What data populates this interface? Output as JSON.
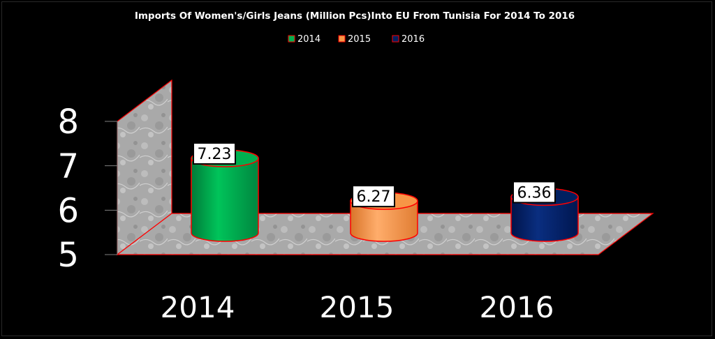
{
  "chart_data": {
    "type": "bar",
    "title": "Imports Of Women's/Girls Jeans (Million Pcs)Into EU From Tunisia For 2014 To 2016",
    "categories": [
      "2014",
      "2015",
      "2016"
    ],
    "values": [
      7.23,
      6.27,
      6.36
    ],
    "data_labels": [
      "7.23",
      "6.27",
      "6.36"
    ],
    "legend": [
      {
        "label": "2014",
        "color": "#00B050"
      },
      {
        "label": "2015",
        "color": "#F79646"
      },
      {
        "label": "2016",
        "color": "#002060"
      }
    ],
    "legend_position": "top",
    "yticks": [
      "5",
      "6",
      "7",
      "8"
    ],
    "ylim": [
      5,
      8
    ],
    "grid": false,
    "shape": "3d-cylinder",
    "colors": [
      "#00B050",
      "#F79646",
      "#002060"
    ],
    "outline_color": "#FF0000",
    "background": "#000000"
  }
}
